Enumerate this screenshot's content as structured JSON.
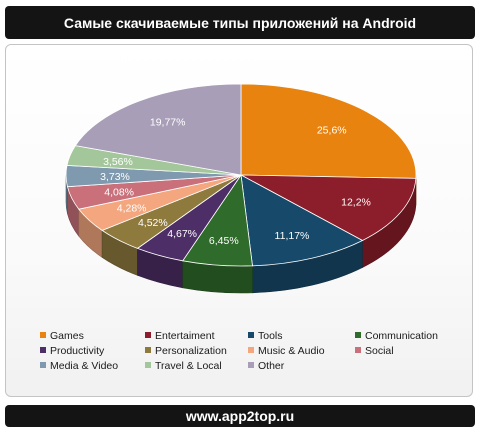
{
  "header": {
    "title": "Самые скачиваемые типы приложений на Android"
  },
  "footer": {
    "text": "www.app2top.ru"
  },
  "chart_data": {
    "type": "pie",
    "title": "Самые скачиваемые типы приложений на Android",
    "categories": [
      "Games",
      "Entertaiment",
      "Tools",
      "Communication",
      "Productivity",
      "Personalization",
      "Music & Audio",
      "Social",
      "Media & Video",
      "Travel & Local",
      "Other"
    ],
    "values": [
      25.6,
      12.2,
      11.17,
      6.45,
      4.67,
      4.52,
      4.28,
      4.08,
      3.73,
      3.56,
      19.77
    ],
    "labels": [
      "25,6%",
      "12,2%",
      "11,17%",
      "6,45%",
      "4,67%",
      "4,52%",
      "4,28%",
      "4,08%",
      "3,73%",
      "3,56%",
      "19,77%"
    ],
    "colors": [
      "#E8830F",
      "#8C1D2A",
      "#17496A",
      "#2F6B2A",
      "#4E2E66",
      "#8F7A3E",
      "#F4A67E",
      "#C9707A",
      "#7F9AAF",
      "#A3C79A",
      "#A89EB8"
    ],
    "legend_position": "bottom",
    "grid": false
  }
}
